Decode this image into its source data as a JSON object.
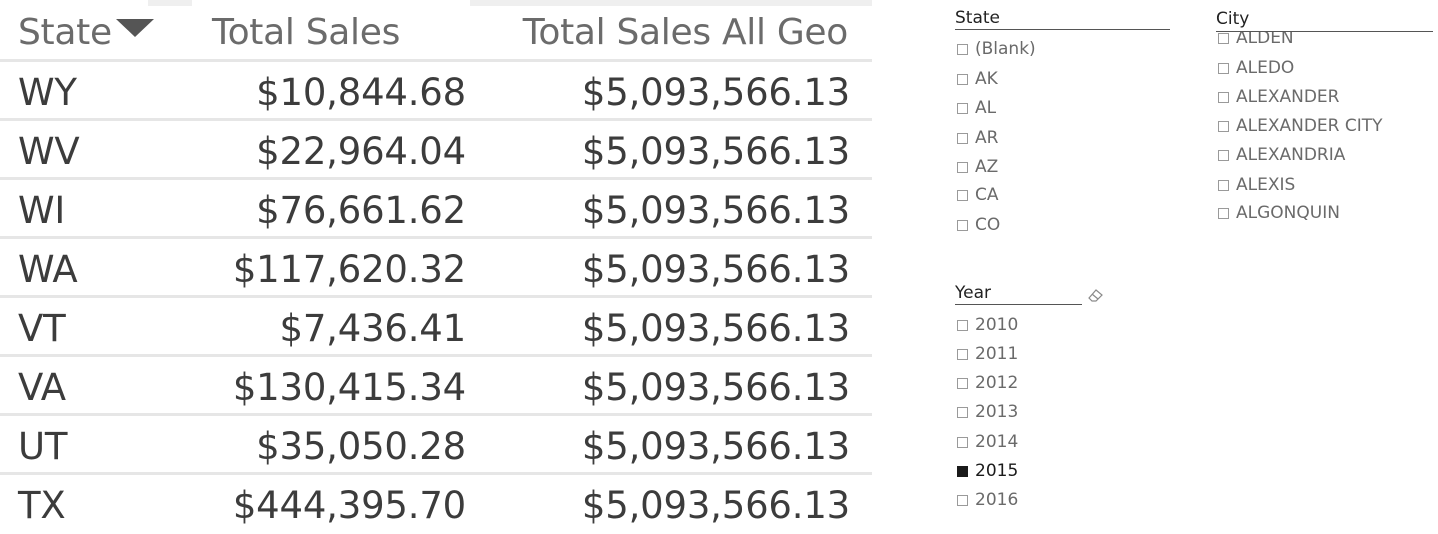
{
  "table": {
    "headers": {
      "state": "State",
      "total_sales": "Total Sales",
      "total_sales_all_geo": "Total Sales All Geo"
    },
    "sort": {
      "column": "State",
      "direction": "descending",
      "icon": "sort-caret-down-icon"
    },
    "rows": [
      {
        "state": "WY",
        "total_sales": "$10,844.68",
        "total_sales_all_geo": "$5,093,566.13"
      },
      {
        "state": "WV",
        "total_sales": "$22,964.04",
        "total_sales_all_geo": "$5,093,566.13"
      },
      {
        "state": "WI",
        "total_sales": "$76,661.62",
        "total_sales_all_geo": "$5,093,566.13"
      },
      {
        "state": "WA",
        "total_sales": "$117,620.32",
        "total_sales_all_geo": "$5,093,566.13"
      },
      {
        "state": "VT",
        "total_sales": "$7,436.41",
        "total_sales_all_geo": "$5,093,566.13"
      },
      {
        "state": "VA",
        "total_sales": "$130,415.34",
        "total_sales_all_geo": "$5,093,566.13"
      },
      {
        "state": "UT",
        "total_sales": "$35,050.28",
        "total_sales_all_geo": "$5,093,566.13"
      },
      {
        "state": "TX",
        "total_sales": "$444,395.70",
        "total_sales_all_geo": "$5,093,566.13"
      }
    ]
  },
  "slicers": {
    "state": {
      "title": "State",
      "items": [
        {
          "label": "(Blank)",
          "checked": false
        },
        {
          "label": "AK",
          "checked": false
        },
        {
          "label": "AL",
          "checked": false
        },
        {
          "label": "AR",
          "checked": false
        },
        {
          "label": "AZ",
          "checked": false
        },
        {
          "label": "CA",
          "checked": false
        },
        {
          "label": "CO",
          "checked": false
        }
      ]
    },
    "city": {
      "title": "City",
      "items": [
        {
          "label": "ALDEN",
          "checked": false
        },
        {
          "label": "ALEDO",
          "checked": false
        },
        {
          "label": "ALEXANDER",
          "checked": false
        },
        {
          "label": "ALEXANDER CITY",
          "checked": false
        },
        {
          "label": "ALEXANDRIA",
          "checked": false
        },
        {
          "label": "ALEXIS",
          "checked": false
        },
        {
          "label": "ALGONQUIN",
          "checked": false
        }
      ]
    },
    "year": {
      "title": "Year",
      "clear_icon": "eraser-icon",
      "items": [
        {
          "label": "2010",
          "checked": false
        },
        {
          "label": "2011",
          "checked": false
        },
        {
          "label": "2012",
          "checked": false
        },
        {
          "label": "2013",
          "checked": false
        },
        {
          "label": "2014",
          "checked": false
        },
        {
          "label": "2015",
          "checked": true
        },
        {
          "label": "2016",
          "checked": false
        }
      ]
    }
  },
  "colors": {
    "header_text": "#6b6b6b",
    "cell_text": "#3c3c3c",
    "row_divider": "#e6e6e6",
    "checked_box": "#1a1a1a"
  }
}
